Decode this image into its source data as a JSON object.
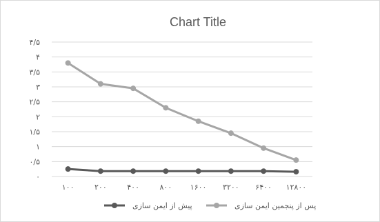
{
  "chart_data": {
    "type": "line",
    "title": "Chart Title",
    "categories": [
      "۱۰۰",
      "۲۰۰",
      "۴۰۰",
      "۸۰۰",
      "۱۶۰۰",
      "۳۲۰۰",
      "۶۴۰۰",
      "۱۲۸۰۰"
    ],
    "y_ticks": [
      "۰",
      "۰/۵",
      "۱",
      "۱/۵",
      "۲",
      "۲/۵",
      "۳",
      "۳/۵",
      "۴",
      "۴/۵"
    ],
    "ylim": [
      0,
      4.5
    ],
    "grid": true,
    "legend_position": "bottom",
    "series": [
      {
        "name": "پیش از ایمن سازی",
        "color": "#595959",
        "values": [
          0.25,
          0.18,
          0.18,
          0.18,
          0.18,
          0.18,
          0.18,
          0.16
        ]
      },
      {
        "name": "پس از پنجمین ایمن سازی",
        "color": "#a6a6a6",
        "values": [
          3.8,
          3.1,
          2.95,
          2.3,
          1.85,
          1.45,
          0.95,
          0.55
        ]
      }
    ]
  }
}
